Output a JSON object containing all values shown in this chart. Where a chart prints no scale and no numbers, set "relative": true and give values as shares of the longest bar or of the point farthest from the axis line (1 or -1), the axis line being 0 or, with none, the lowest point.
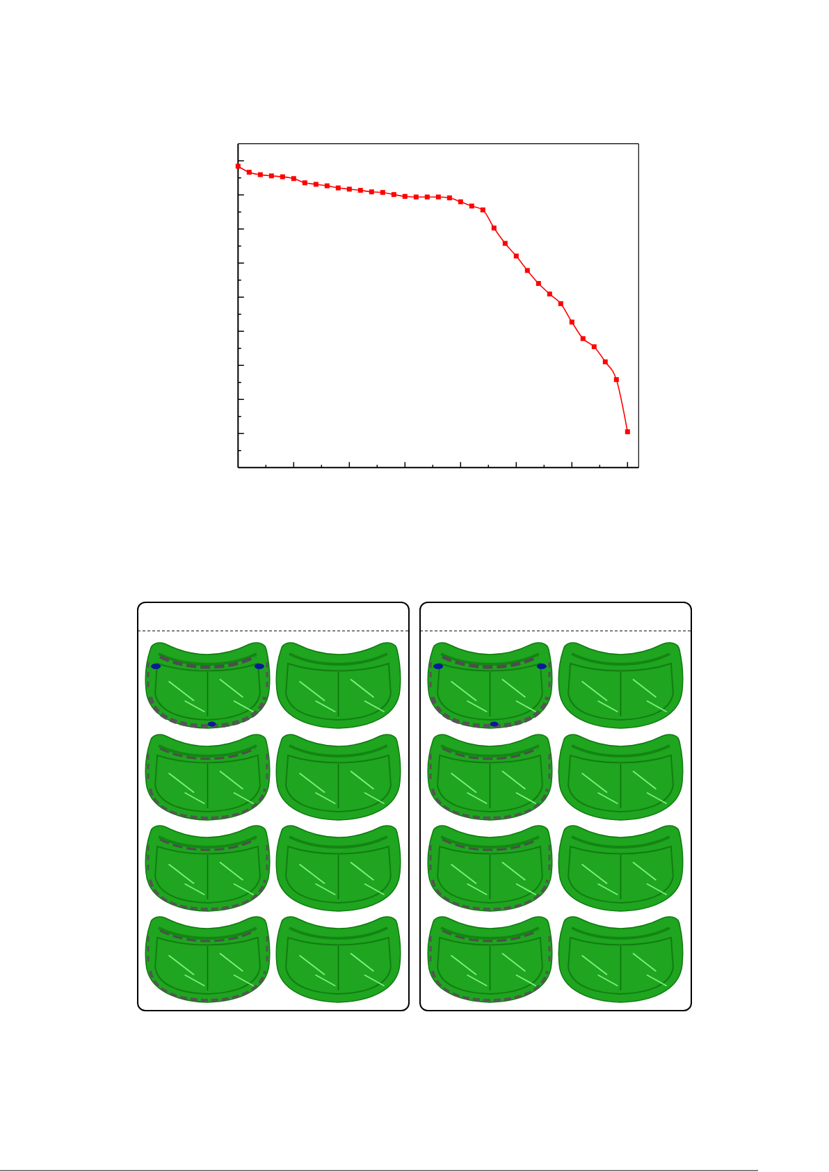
{
  "chart_data": {
    "type": "line",
    "relative": true,
    "marker": "square",
    "color": "#ff0000",
    "categories": [
      null,
      null,
      null,
      null,
      null,
      null,
      null,
      null,
      null,
      null,
      null,
      null,
      null,
      null,
      null,
      null,
      null,
      null,
      null,
      null,
      null,
      null,
      null,
      null,
      null,
      null,
      null,
      null,
      null,
      null,
      null,
      null,
      null,
      null,
      null,
      null
    ],
    "values": [
      1,
      0.98,
      0.972,
      0.968,
      0.965,
      0.959,
      0.945,
      0.94,
      0.935,
      0.928,
      0.924,
      0.92,
      0.915,
      0.913,
      0.906,
      0.9,
      0.898,
      0.898,
      0.898,
      0.895,
      0.882,
      0.868,
      0.855,
      0.795,
      0.744,
      0.702,
      0.654,
      0.611,
      0.576,
      0.544,
      0.483,
      0.428,
      0.401,
      0.351,
      0.292,
      0.119
    ]
  }
}
